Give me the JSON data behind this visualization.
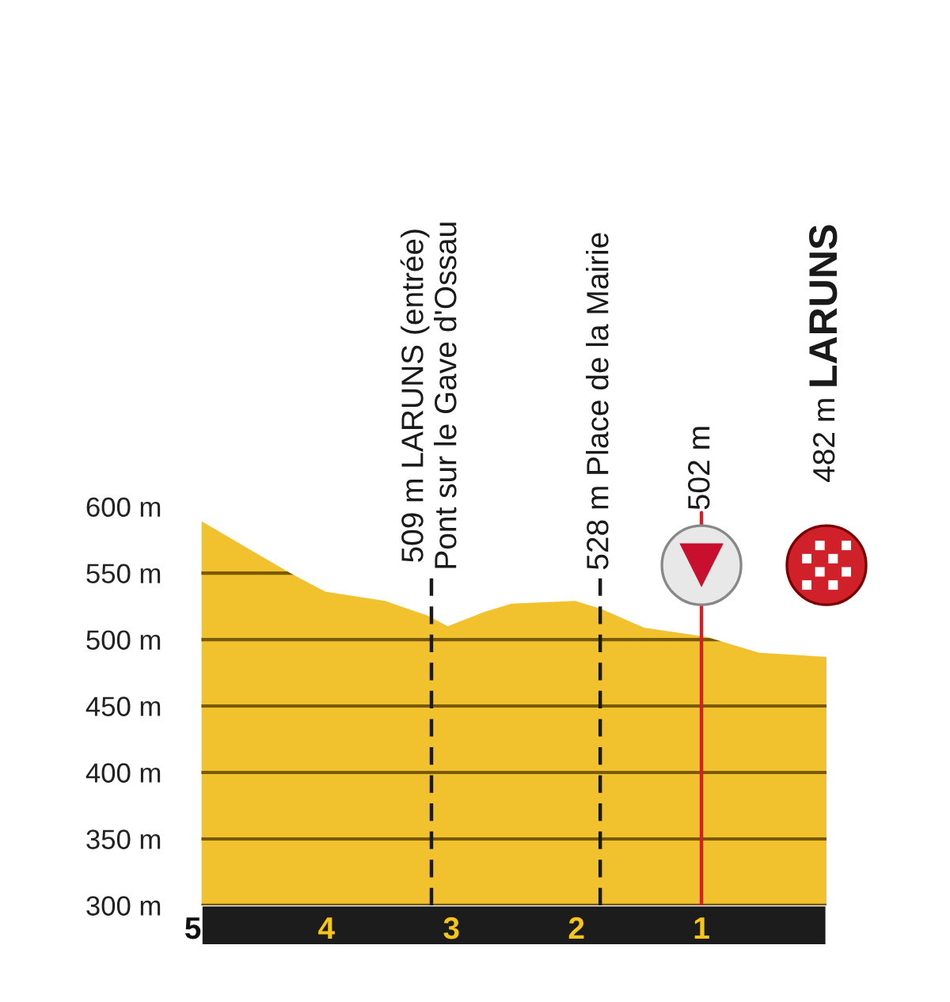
{
  "chart_data": {
    "type": "area",
    "x": [
      5,
      4.29,
      4.01,
      3.53,
      3.19,
      3.03,
      2.73,
      2.52,
      2.01,
      1.8,
      1.46,
      0.96,
      0.54,
      0
    ],
    "series": [
      {
        "color": "#f2c12e",
        "values": [
          589,
          550,
          536,
          529,
          518,
          510,
          521,
          527,
          529,
          523,
          509,
          502,
          490,
          487
        ]
      }
    ],
    "xlim": [
      5,
      0
    ],
    "xticks": [
      5,
      4,
      3,
      2,
      1
    ],
    "ylim": [
      300,
      600
    ],
    "yticks": [
      {
        "value": 300,
        "label": "300 m"
      },
      {
        "value": 350,
        "label": "350 m"
      },
      {
        "value": 400,
        "label": "400 m"
      },
      {
        "value": 450,
        "label": "450 m"
      },
      {
        "value": 500,
        "label": "500 m"
      },
      {
        "value": 550,
        "label": "550 m"
      },
      {
        "value": 600,
        "label": "600 m"
      }
    ],
    "grid": "y",
    "ref_lines": [
      {
        "axis": "x",
        "value": 3.16,
        "label": "509 m LARUNS (entrée)\nPont sur le Gave d'Ossau",
        "color": "#1a1a1a",
        "line_style": "dashed"
      },
      {
        "axis": "x",
        "value": 1.81,
        "label": "528 m Place de la Mairie",
        "color": "#1a1a1a",
        "line_style": "dashed"
      },
      {
        "axis": "x",
        "value": 1,
        "label": "502 m",
        "color": "#d0202a",
        "line_style": "solid"
      }
    ],
    "annotations": [
      "482 m LARUNS"
    ]
  }
}
